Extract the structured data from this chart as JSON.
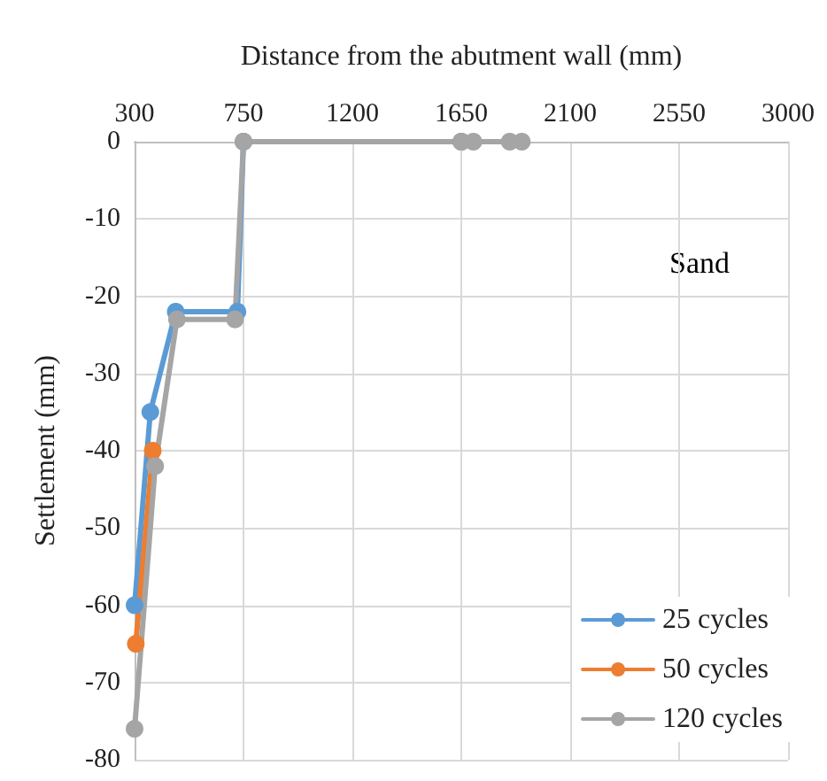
{
  "chart_data": {
    "type": "line",
    "xlabel": "Distance from the abutment wall (mm)",
    "ylabel": "Settlement (mm)",
    "annotations": [
      "Sand"
    ],
    "xlim": [
      300,
      3000
    ],
    "xticks": [
      300,
      750,
      1200,
      1650,
      2100,
      2550,
      3000
    ],
    "ylim": [
      -80,
      0
    ],
    "yticks": [
      -80,
      -70,
      -60,
      -50,
      -40,
      -30,
      -20,
      -10,
      0
    ],
    "grid": true,
    "legend": "bottom right",
    "marker": "circle",
    "line_style": "solid",
    "series": [
      {
        "name": "25 cycles",
        "color": "#5b9bd5",
        "x": [
          300,
          365,
          470,
          725,
          750,
          1650
        ],
        "values": [
          -60,
          -35,
          -22,
          -22,
          0,
          0
        ]
      },
      {
        "name": "50 cycles",
        "color": "#ed7d31",
        "x": [
          305,
          375
        ],
        "values": [
          -65,
          -40
        ]
      },
      {
        "name": "120 cycles",
        "color": "#a5a5a5",
        "x": [
          300,
          385,
          475,
          715,
          750,
          1650,
          1700,
          1850,
          1900
        ],
        "values": [
          -76,
          -42,
          -23,
          -23,
          0,
          0,
          0,
          0,
          0
        ]
      }
    ]
  }
}
